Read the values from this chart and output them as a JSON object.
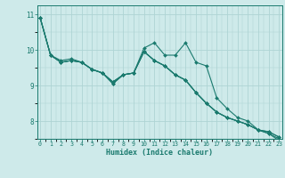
{
  "xlabel": "Humidex (Indice chaleur)",
  "ylabel": "",
  "background_color": "#ceeaea",
  "line_color": "#1a7a6e",
  "grid_color": "#aed4d4",
  "xmin": 0,
  "xmax": 23,
  "ymin": 7.5,
  "ymax": 11.25,
  "series": [
    [
      10.9,
      9.85,
      9.7,
      9.75,
      9.65,
      9.45,
      9.35,
      9.05,
      9.3,
      9.35,
      10.05,
      10.2,
      9.85,
      9.85,
      10.2,
      9.65,
      9.55,
      8.65,
      8.35,
      8.1,
      8.0,
      7.75,
      7.7,
      7.55
    ],
    [
      10.9,
      9.85,
      9.65,
      9.7,
      9.65,
      9.45,
      9.35,
      9.1,
      9.3,
      9.35,
      9.95,
      9.7,
      9.55,
      9.3,
      9.15,
      8.8,
      8.5,
      8.25,
      8.1,
      8.0,
      7.9,
      7.75,
      7.7,
      7.55
    ],
    [
      10.9,
      9.85,
      9.65,
      9.7,
      9.65,
      9.45,
      9.35,
      9.1,
      9.3,
      9.35,
      9.95,
      9.7,
      9.55,
      9.3,
      9.15,
      8.8,
      8.5,
      8.25,
      8.1,
      8.0,
      7.9,
      7.75,
      7.65,
      7.5
    ],
    [
      10.9,
      9.85,
      9.65,
      9.7,
      9.65,
      9.45,
      9.35,
      9.05,
      9.3,
      9.35,
      9.95,
      9.7,
      9.55,
      9.3,
      9.15,
      8.8,
      8.5,
      8.25,
      8.1,
      8.0,
      7.9,
      7.75,
      7.65,
      7.45
    ]
  ]
}
